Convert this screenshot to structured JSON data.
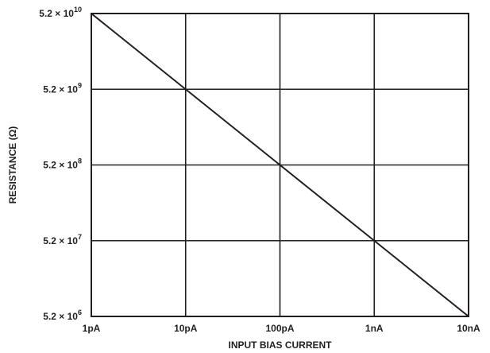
{
  "chart_data": {
    "type": "line",
    "title": "",
    "xlabel": "INPUT BIAS CURRENT",
    "ylabel": "RESISTANCE (Ω)",
    "x_scale": "log",
    "y_scale": "log",
    "xlim": [
      1e-12,
      1e-08
    ],
    "ylim": [
      5200000.0,
      52000000000.0
    ],
    "x_ticks": [
      {
        "value": 1e-12,
        "label": "1pA"
      },
      {
        "value": 1e-11,
        "label": "10pA"
      },
      {
        "value": 1e-10,
        "label": "100pA"
      },
      {
        "value": 1e-09,
        "label": "1nA"
      },
      {
        "value": 1e-08,
        "label": "10nA"
      }
    ],
    "y_ticks": [
      {
        "value": 52000000000.0,
        "base": "5.2 × 10",
        "exp": "10"
      },
      {
        "value": 5200000000.0,
        "base": "5.2 × 10",
        "exp": "9"
      },
      {
        "value": 520000000.0,
        "base": "5.2 × 10",
        "exp": "8"
      },
      {
        "value": 52000000.0,
        "base": "5.2 × 10",
        "exp": "7"
      },
      {
        "value": 5200000.0,
        "base": "5.2 × 10",
        "exp": "6"
      }
    ],
    "grid": true,
    "series": [
      {
        "x": [
          1e-12,
          1e-11,
          1e-10,
          1e-09,
          1e-08
        ],
        "y": [
          52000000000.0,
          5200000000.0,
          520000000.0,
          52000000.0,
          5200000.0
        ]
      }
    ],
    "colors": {
      "ink": "#231f20",
      "background": "#ffffff"
    }
  }
}
